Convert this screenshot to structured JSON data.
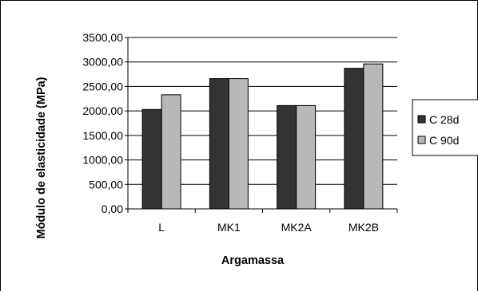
{
  "chart_data": {
    "type": "bar",
    "title": "",
    "xlabel": "Argamassa",
    "ylabel": "Módulo de elasticidade  (MPa)",
    "categories": [
      "L",
      "MK1",
      "MK2A",
      "MK2B"
    ],
    "series": [
      {
        "name": "C 28d",
        "values": [
          2030,
          2660,
          2110,
          2870
        ],
        "color": "#333333"
      },
      {
        "name": "C 90d",
        "values": [
          2330,
          2660,
          2110,
          2960
        ],
        "color": "#b8b8b8"
      }
    ],
    "ylim": [
      0,
      3500
    ],
    "yticks": [
      "0,00",
      "500,00",
      "1000,00",
      "1500,00",
      "2000,00",
      "2500,00",
      "3000,00",
      "3500,00"
    ],
    "grid": true,
    "legend_position": "right"
  }
}
